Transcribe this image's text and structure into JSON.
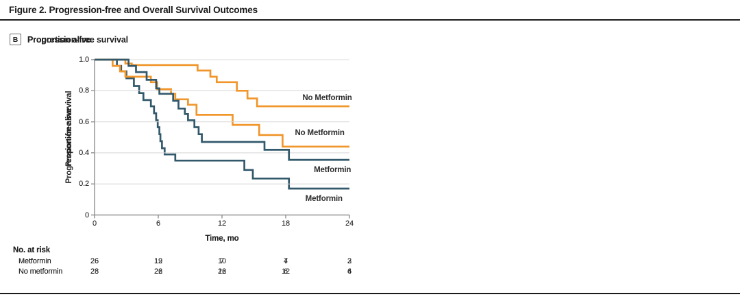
{
  "figure_title": "Figure 2. Progression-free and Overall Survival Outcomes",
  "colors": {
    "orange": "#F0962B",
    "teal": "#32596B",
    "grid": "#DBDBDB",
    "axis": "#8C8C8C",
    "text": "#222222"
  },
  "chart_data": [
    {
      "type": "line",
      "panel_key": "A",
      "title": "Progression-free survival",
      "xlabel": "Time, mo",
      "ylabel": "Progression-free survival",
      "xlim": [
        0,
        24
      ],
      "ylim": [
        0,
        1
      ],
      "xticks": [
        0,
        6,
        12,
        18,
        24
      ],
      "yticks": [
        "1.0",
        "0.8",
        "0.6",
        "0.4",
        "0.2",
        "0"
      ],
      "grid": "horizontal",
      "legend_position": "inline-right",
      "series": [
        {
          "name": "Metformin",
          "color": "teal",
          "label_at": {
            "x": 21.6,
            "y": 0.105
          },
          "steps": [
            [
              0,
              1.0
            ],
            [
              2.1,
              0.96
            ],
            [
              2.5,
              0.925
            ],
            [
              3.0,
              0.88
            ],
            [
              3.7,
              0.83
            ],
            [
              4.2,
              0.785
            ],
            [
              4.6,
              0.74
            ],
            [
              5.3,
              0.7
            ],
            [
              5.6,
              0.655
            ],
            [
              5.8,
              0.61
            ],
            [
              5.95,
              0.565
            ],
            [
              6.1,
              0.52
            ],
            [
              6.2,
              0.475
            ],
            [
              6.35,
              0.43
            ],
            [
              6.6,
              0.39
            ],
            [
              7.6,
              0.35
            ],
            [
              14.1,
              0.29
            ],
            [
              14.9,
              0.235
            ],
            [
              18.3,
              0.17
            ]
          ]
        },
        {
          "name": "No Metformin",
          "color": "orange",
          "label_at": {
            "x": 21.2,
            "y": 0.53
          },
          "steps": [
            [
              0,
              1.0
            ],
            [
              1.7,
              0.96
            ],
            [
              2.4,
              0.925
            ],
            [
              2.9,
              0.89
            ],
            [
              5.3,
              0.855
            ],
            [
              5.9,
              0.81
            ],
            [
              7.2,
              0.78
            ],
            [
              7.6,
              0.745
            ],
            [
              8.8,
              0.71
            ],
            [
              9.6,
              0.645
            ],
            [
              13.0,
              0.58
            ],
            [
              15.5,
              0.515
            ],
            [
              17.7,
              0.44
            ]
          ]
        }
      ],
      "at_risk": {
        "header": "No. at risk",
        "times": [
          0,
          6,
          12,
          18,
          24
        ],
        "rows": [
          {
            "label": "Metformin",
            "values": [
              26,
              12,
              7,
              4,
              2
            ]
          },
          {
            "label": "No metformin",
            "values": [
              28,
              22,
              16,
              6,
              4
            ]
          }
        ]
      }
    },
    {
      "type": "line",
      "panel_key": "B",
      "title": "Proportion alive",
      "xlabel": "Time, mo",
      "ylabel": "Proportion alive",
      "xlim": [
        0,
        24
      ],
      "ylim": [
        0,
        1
      ],
      "xticks": [
        0,
        6,
        12,
        18,
        24
      ],
      "yticks": [
        "1.0",
        "0.8",
        "0.6",
        "0.4",
        "0.2",
        "0"
      ],
      "grid": "horizontal",
      "legend_position": "inline-right",
      "series": [
        {
          "name": "No Metformin",
          "color": "orange",
          "label_at": {
            "x": 21.9,
            "y": 0.755
          },
          "steps": [
            [
              0,
              1.0
            ],
            [
              2.9,
              0.975
            ],
            [
              3.5,
              0.965
            ],
            [
              9.7,
              0.93
            ],
            [
              10.9,
              0.89
            ],
            [
              11.5,
              0.855
            ],
            [
              13.4,
              0.8
            ],
            [
              14.4,
              0.75
            ],
            [
              15.3,
              0.7
            ]
          ]
        },
        {
          "name": "Metformin",
          "color": "teal",
          "label_at": {
            "x": 22.4,
            "y": 0.29
          },
          "steps": [
            [
              0,
              1.0
            ],
            [
              3.2,
              0.96
            ],
            [
              3.9,
              0.92
            ],
            [
              4.9,
              0.87
            ],
            [
              5.8,
              0.815
            ],
            [
              6.1,
              0.78
            ],
            [
              7.4,
              0.735
            ],
            [
              7.9,
              0.685
            ],
            [
              8.5,
              0.65
            ],
            [
              8.8,
              0.61
            ],
            [
              9.4,
              0.565
            ],
            [
              9.8,
              0.52
            ],
            [
              10.1,
              0.47
            ],
            [
              16.0,
              0.42
            ],
            [
              18.3,
              0.355
            ]
          ]
        }
      ],
      "at_risk": {
        "header": "No. at risk",
        "times": [
          0,
          6,
          12,
          18,
          24
        ],
        "rows": [
          {
            "label": "Metformin",
            "values": [
              26,
              19,
              10,
              7,
              3
            ]
          },
          {
            "label": "No metformin",
            "values": [
              28,
              26,
              22,
              12,
              6
            ]
          }
        ]
      }
    }
  ]
}
